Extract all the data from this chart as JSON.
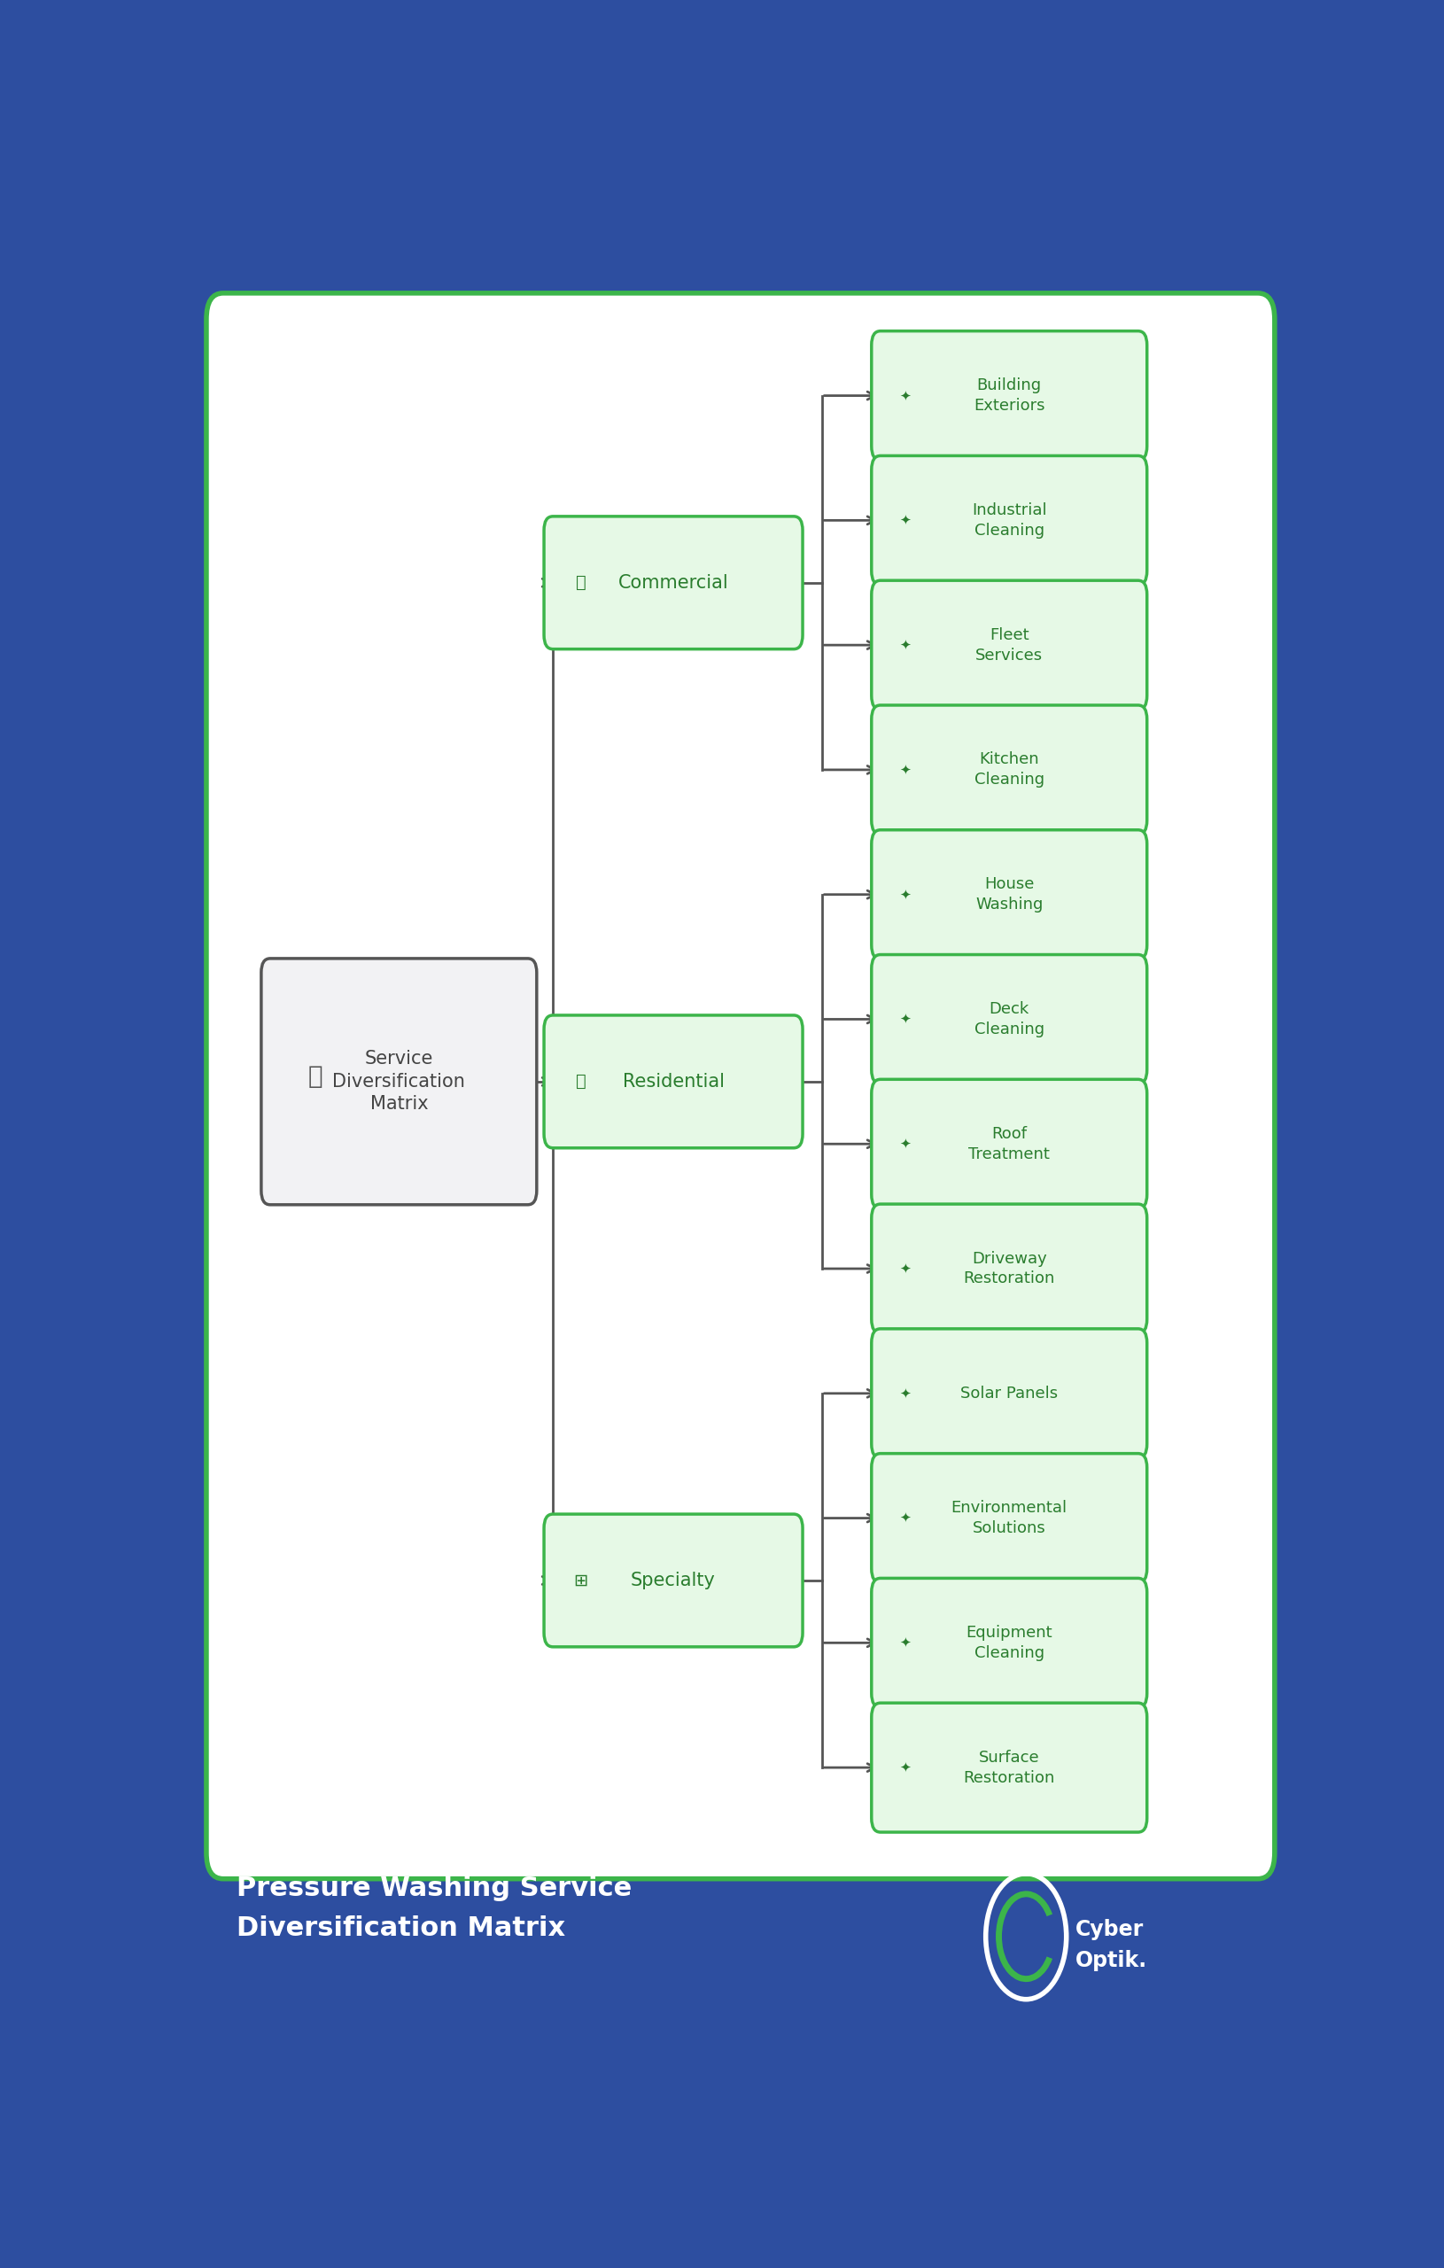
{
  "bg_color": "#2d4ea0",
  "panel_bg": "#ffffff",
  "panel_border": "#3cb54a",
  "footer_bg": "#2d4ea0",
  "footer_title_line1": "Pressure Washing Service",
  "footer_title_line2": "Diversification Matrix",
  "footer_text_color": "#ffffff",
  "root_label": "Service\nDiversification\nMatrix",
  "root_bg": "#f2f2f4",
  "root_border": "#555555",
  "root_text_color": "#444444",
  "mid_labels": [
    "Commercial",
    "Residential",
    "Specialty"
  ],
  "leaf_labels": [
    [
      "Building\nExteriors",
      "Industrial\nCleaning",
      "Fleet\nServices",
      "Kitchen\nCleaning"
    ],
    [
      "House\nWashing",
      "Deck\nCleaning",
      "Roof\nTreatment",
      "Driveway\nRestoration"
    ],
    [
      "Solar Panels",
      "Environmental\nSolutions",
      "Equipment\nCleaning",
      "Surface\nRestoration"
    ]
  ],
  "node_bg": "#e6f9e6",
  "node_border": "#3cb54a",
  "node_text": "#2a7d2e",
  "line_color": "#555555",
  "cyberoptik_green": "#3cb54a",
  "cyberoptik_white": "#ffffff"
}
